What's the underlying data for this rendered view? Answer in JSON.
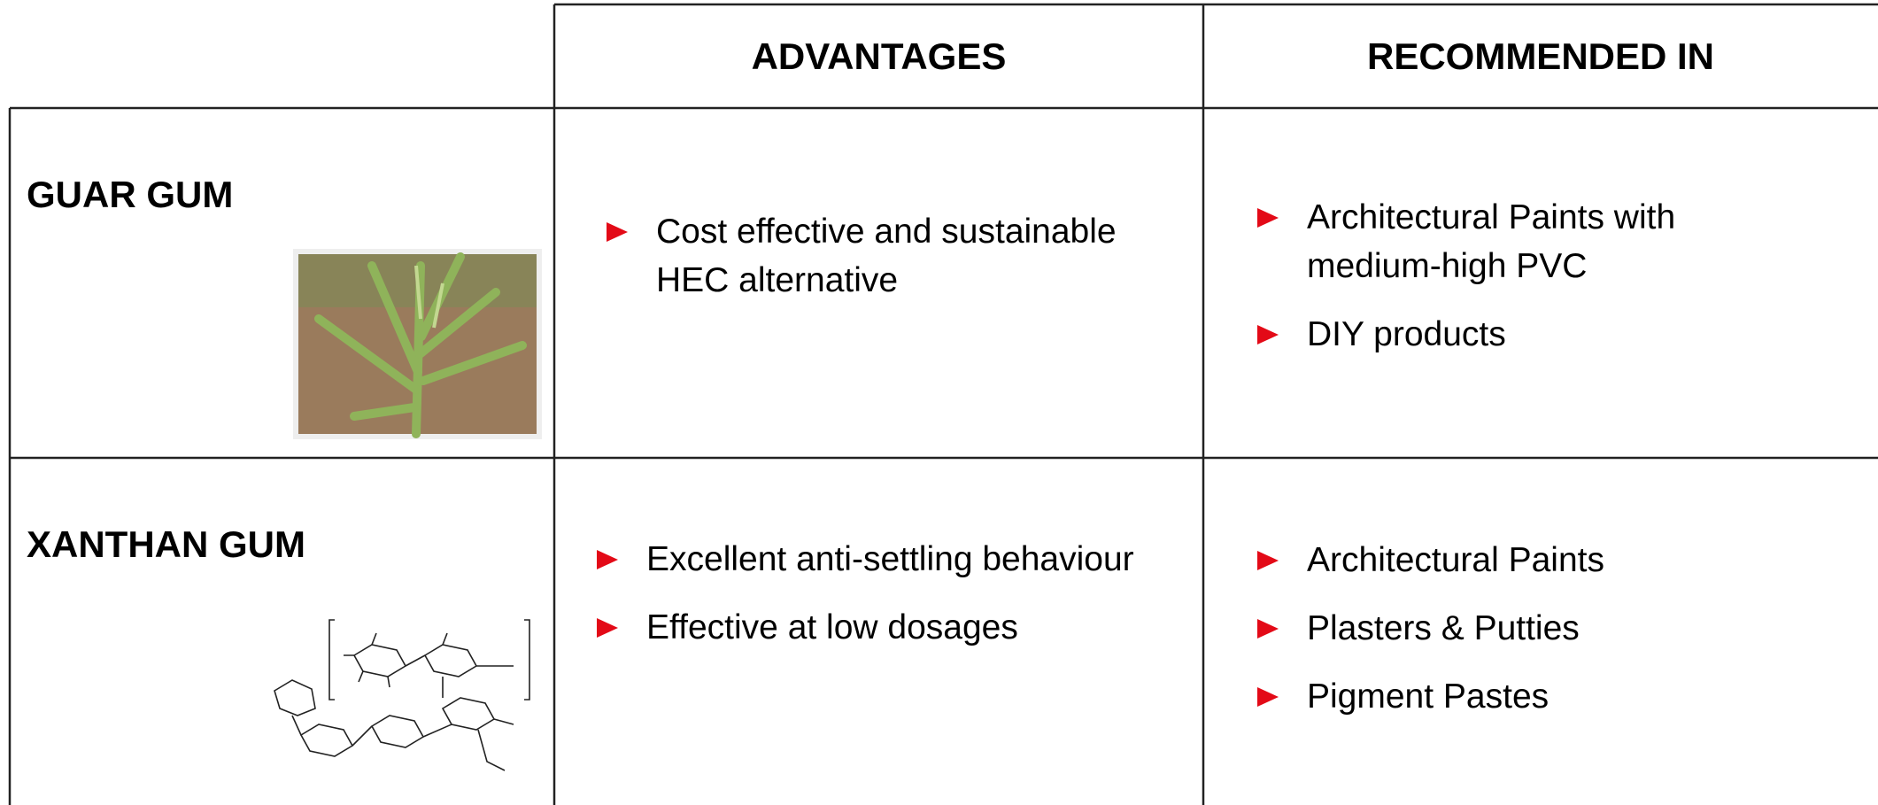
{
  "table": {
    "header": [
      "ADVANTAGES",
      "RECOMMENDED IN"
    ],
    "rows": [
      {
        "label": "GUAR GUM",
        "advantages": [
          "Cost effective and sustainable HEC alternative"
        ],
        "recommended": [
          "Architectural Paints with medium-high PVC",
          "DIY products"
        ]
      },
      {
        "label": "XANTHAN GUM",
        "advantages": [
          "Excellent anti-settling behaviour",
          "Effective at low dosages"
        ],
        "recommended": [
          "Architectural Paints",
          "Plasters & Putties",
          "Pigment Pastes"
        ]
      }
    ]
  }
}
